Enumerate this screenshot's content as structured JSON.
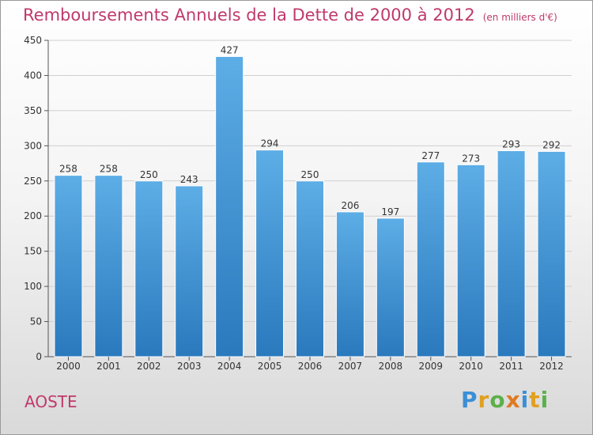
{
  "title": "Remboursements Annuels de la Dette de 2000 à 2012",
  "unit_note": "(en milliers d'€)",
  "commune": "AOSTE",
  "logo": {
    "text": "Proxiti",
    "letters": [
      {
        "ch": "P",
        "color": "#3a8fd6"
      },
      {
        "ch": "r",
        "color": "#e0a020"
      },
      {
        "ch": "o",
        "color": "#5bb04a"
      },
      {
        "ch": "x",
        "color": "#e07a20"
      },
      {
        "ch": "i",
        "color": "#3a8fd6"
      },
      {
        "ch": "t",
        "color": "#e0a020"
      },
      {
        "ch": "i",
        "color": "#5bb04a"
      }
    ]
  },
  "colors": {
    "bar_top": "#5dade6",
    "bar_bottom": "#2a79bd",
    "title": "#c0396b",
    "grid": "#d0d0d0"
  },
  "chart_data": {
    "type": "bar",
    "categories": [
      "2000",
      "2001",
      "2002",
      "2003",
      "2004",
      "2005",
      "2006",
      "2007",
      "2008",
      "2009",
      "2010",
      "2011",
      "2012"
    ],
    "values": [
      258,
      258,
      250,
      243,
      427,
      294,
      250,
      206,
      197,
      277,
      273,
      293,
      292
    ],
    "title": "Remboursements Annuels de la Dette de 2000 à 2012",
    "ylabel": "",
    "xlabel": "",
    "ylim": [
      0,
      450
    ],
    "yticks": [
      0,
      50,
      100,
      150,
      200,
      250,
      300,
      350,
      400,
      450
    ],
    "grid": true
  }
}
